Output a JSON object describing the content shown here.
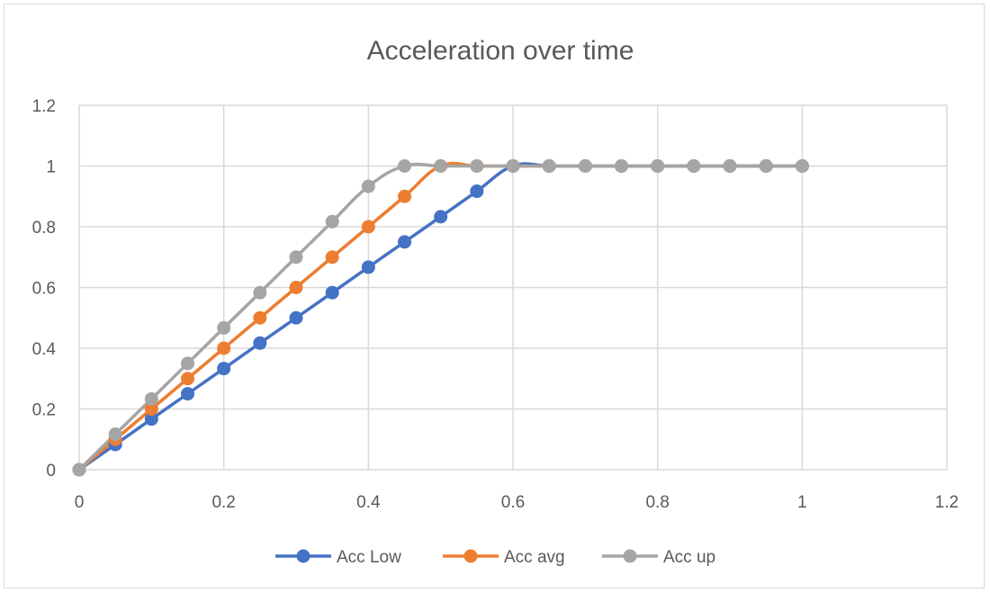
{
  "chart_data": {
    "type": "line",
    "title": "Acceleration over time",
    "xlabel": "",
    "ylabel": "",
    "xlim": [
      0,
      1.2
    ],
    "ylim": [
      0,
      1.2
    ],
    "x_ticks": [
      "0",
      "0.2",
      "0.4",
      "0.6",
      "0.8",
      "1",
      "1.2"
    ],
    "y_ticks": [
      "0",
      "0.2",
      "0.4",
      "0.6",
      "0.8",
      "1",
      "1.2"
    ],
    "grid": true,
    "legend_position": "bottom",
    "x": [
      0,
      0.05,
      0.1,
      0.15,
      0.2,
      0.25,
      0.3,
      0.35,
      0.4,
      0.45,
      0.5,
      0.55,
      0.6,
      0.65,
      0.7,
      0.75,
      0.8,
      0.85,
      0.9,
      0.95,
      1.0
    ],
    "series": [
      {
        "name": "Acc Low",
        "color": "#4472c4",
        "values": [
          0,
          0.083,
          0.167,
          0.25,
          0.333,
          0.417,
          0.5,
          0.583,
          0.667,
          0.75,
          0.833,
          0.917,
          1,
          1,
          1,
          1,
          1,
          1,
          1,
          1,
          1
        ]
      },
      {
        "name": "Acc avg",
        "color": "#ed7d31",
        "values": [
          0,
          0.1,
          0.2,
          0.3,
          0.4,
          0.5,
          0.6,
          0.7,
          0.8,
          0.9,
          1,
          1,
          1,
          1,
          1,
          1,
          1,
          1,
          1,
          1,
          1
        ]
      },
      {
        "name": "Acc up",
        "color": "#a5a5a5",
        "values": [
          0,
          0.117,
          0.233,
          0.35,
          0.467,
          0.583,
          0.7,
          0.817,
          0.933,
          1,
          1,
          1,
          1,
          1,
          1,
          1,
          1,
          1,
          1,
          1,
          1
        ]
      }
    ]
  }
}
